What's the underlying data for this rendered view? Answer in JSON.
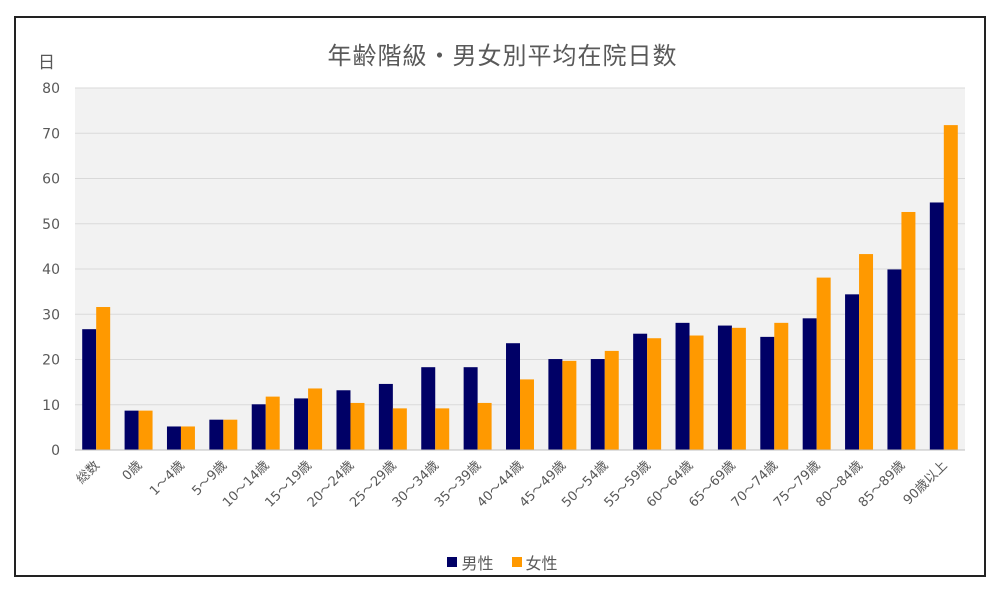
{
  "chart_data": {
    "type": "bar",
    "title": "年齢階級・男女別平均在院日数",
    "ylabel": "日",
    "ylim": [
      0,
      80
    ],
    "yticks": [
      0,
      10,
      20,
      30,
      40,
      50,
      60,
      70,
      80
    ],
    "grid": true,
    "legend_position": "bottom",
    "categories": [
      "総数",
      "0歳",
      "1～4歳",
      "5～9歳",
      "10～14歳",
      "15～19歳",
      "20～24歳",
      "25～29歳",
      "30～34歳",
      "35～39歳",
      "40～44歳",
      "45～49歳",
      "50～54歳",
      "55～59歳",
      "60～64歳",
      "65～69歳",
      "70～74歳",
      "75～79歳",
      "80～84歳",
      "85～89歳",
      "90歳以上"
    ],
    "series": [
      {
        "name": "男性",
        "color": "#000066",
        "values": [
          26.7,
          8.7,
          5.2,
          6.7,
          10.1,
          11.4,
          13.2,
          14.6,
          18.3,
          18.3,
          23.6,
          20.1,
          20.1,
          25.7,
          28.1,
          27.5,
          25.0,
          29.1,
          34.4,
          39.9,
          54.7
        ]
      },
      {
        "name": "女性",
        "color": "#FF9900",
        "values": [
          31.6,
          8.7,
          5.2,
          6.7,
          11.8,
          13.6,
          10.4,
          9.2,
          9.2,
          10.4,
          15.6,
          19.7,
          21.9,
          24.7,
          25.3,
          27.0,
          28.1,
          38.1,
          43.3,
          52.6,
          71.8
        ]
      }
    ]
  }
}
